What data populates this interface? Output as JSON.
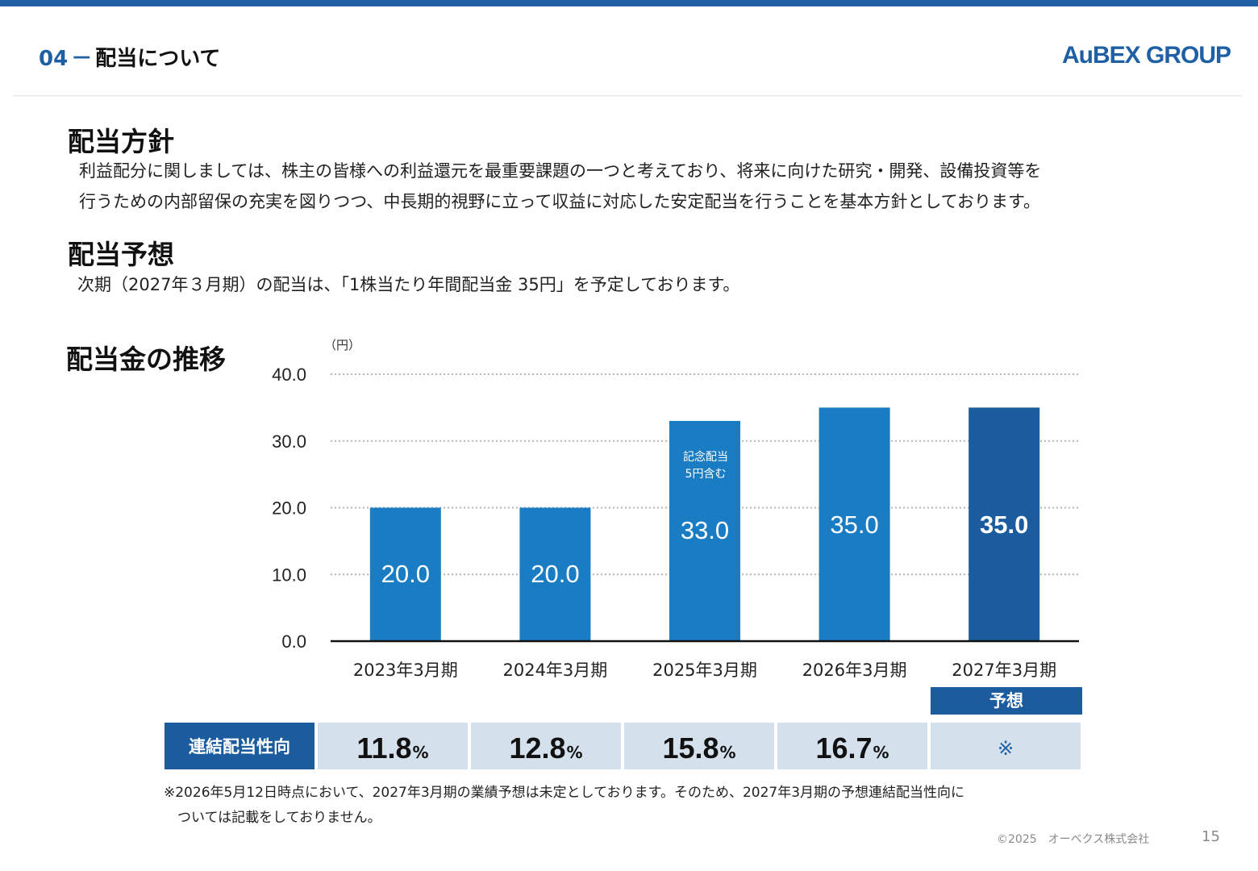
{
  "header": {
    "section_number": "04",
    "section_dash": "－",
    "section_title": "配当について",
    "logo": "AuBEX GROUP"
  },
  "policy": {
    "heading": "配当方針",
    "line1": "利益配分に関しましては、株主の皆様への利益還元を最重要課題の一つと考えており、将来に向けた研究・開発、設備投資等を",
    "line2": "行うための内部留保の充実を図りつつ、中長期的視野に立って収益に対応した安定配当を行うことを基本方針としております。"
  },
  "forecast": {
    "heading": "配当予想",
    "text": "次期（2027年３月期）の配当は、「1株当たり年間配当金 35円」を予定しております。"
  },
  "chart_section": {
    "heading": "配当金の推移",
    "unit": "（円）",
    "forecast_tag": "予想"
  },
  "chart_data": {
    "type": "bar",
    "title": "配当金の推移",
    "ylabel": "（円）",
    "xlabel": "",
    "categories": [
      "2023年3月期",
      "2024年3月期",
      "2025年3月期",
      "2026年3月期",
      "2027年3月期"
    ],
    "values": [
      20.0,
      20.0,
      33.0,
      35.0,
      35.0
    ],
    "value_labels": [
      "20.0",
      "20.0",
      "33.0",
      "35.0",
      "35.0"
    ],
    "ylim": [
      0,
      40
    ],
    "yticks": [
      "0.0",
      "10.0",
      "20.0",
      "30.0",
      "40.0"
    ],
    "grid": true,
    "annotations": [
      {
        "category": "2025年3月期",
        "lines": [
          "記念配当",
          "5円含む"
        ]
      }
    ],
    "colors": {
      "bar": "#1a7dc4",
      "forecast_bar": "#1a5c9e",
      "grid": "#b5b5b5",
      "axis": "#111111"
    }
  },
  "payout": {
    "label": "連結配当性向",
    "values": [
      {
        "value": "11.8",
        "unit": "%"
      },
      {
        "value": "12.8",
        "unit": "%"
      },
      {
        "value": "15.8",
        "unit": "%"
      },
      {
        "value": "16.7",
        "unit": "%"
      }
    ],
    "last": "※"
  },
  "footnote": {
    "line1": "※2026年5月12日時点において、2027年3月期の業績予想は未定としております。そのため、2027年3月期の予想連結配当性向に",
    "line2": "　ついては記載をしておりません。"
  },
  "footer": {
    "copyright": "©2025　オーベクス株式会社",
    "page": "15"
  }
}
